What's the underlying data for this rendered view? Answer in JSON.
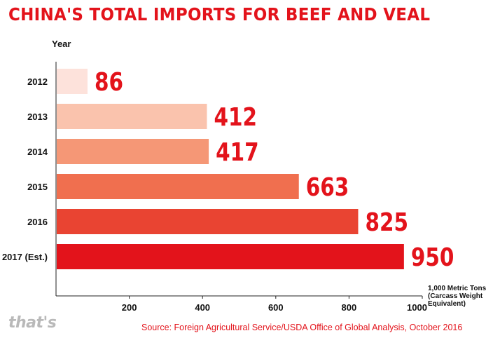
{
  "colors": {
    "accent": "#e3131b",
    "bars": [
      "#fde2db",
      "#fac3ad",
      "#f59776",
      "#f06f4f",
      "#e94432",
      "#e3131b"
    ]
  },
  "brand": {
    "logo_text": "that's"
  },
  "source": "Source: Foreign Agricultural Service/USDA Office of Global Analysis, October 2016",
  "chart_data": {
    "type": "bar",
    "orientation": "horizontal",
    "title": "CHINA'S TOTAL IMPORTS FOR BEEF AND VEAL",
    "ylabel": "Year",
    "xlabel": "1,000 Metric Tons (Carcass Weight Equivalent)",
    "xlabel_lines": [
      "1,000 Metric Tons",
      "(Carcass Weight",
      "Equivalent)"
    ],
    "categories": [
      "2012",
      "2013",
      "2014",
      "2015",
      "2016",
      "2017 (Est.)"
    ],
    "values": [
      86,
      412,
      417,
      663,
      825,
      950
    ],
    "xlim": [
      0,
      1000
    ],
    "xticks": [
      200,
      400,
      600,
      800,
      1000
    ],
    "grid": false,
    "legend": "none"
  }
}
